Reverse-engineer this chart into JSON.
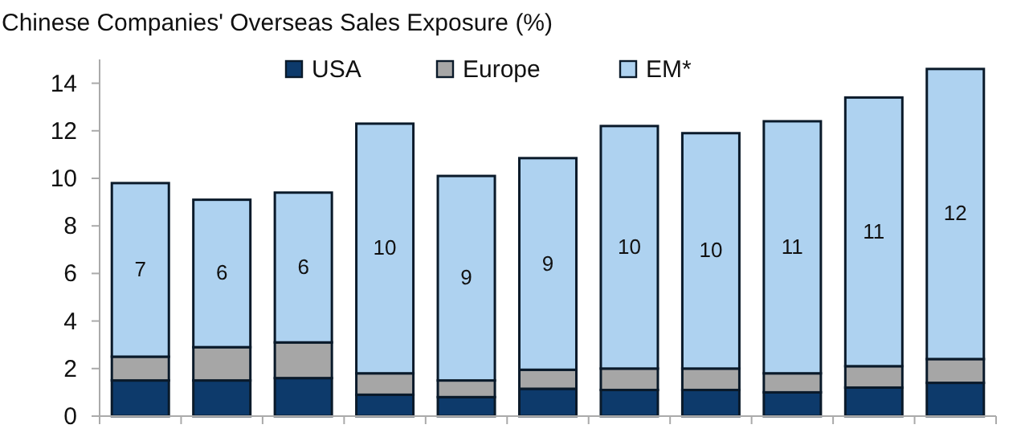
{
  "chart_data": {
    "type": "bar",
    "title": "Chinese Companies' Overseas Sales Exposure (%)",
    "stacked": true,
    "legend": "top",
    "grid": false,
    "categories": [
      null,
      null,
      null,
      null,
      null,
      null,
      null,
      null,
      null,
      null,
      null
    ],
    "ylim": [
      0,
      15
    ],
    "yticks": [
      0,
      2,
      4,
      6,
      8,
      10,
      12,
      14
    ],
    "series": [
      {
        "name": "USA",
        "color": "#0d3a6b",
        "values": [
          1.5,
          1.5,
          1.6,
          0.9,
          0.8,
          1.15,
          1.1,
          1.1,
          1.0,
          1.2,
          1.4
        ]
      },
      {
        "name": "Europe",
        "color": "#a6a6a6",
        "values": [
          1.0,
          1.4,
          1.5,
          0.9,
          0.7,
          0.8,
          0.9,
          0.9,
          0.8,
          0.9,
          1.0
        ]
      },
      {
        "name": "EM*",
        "color": "#aed2f0",
        "values": [
          7.3,
          6.2,
          6.3,
          10.5,
          8.6,
          8.9,
          10.2,
          9.9,
          10.6,
          11.3,
          12.2
        ],
        "value_labels": [
          "7",
          "6",
          "6",
          "10",
          "9",
          "9",
          "10",
          "10",
          "11",
          "11",
          "12"
        ]
      }
    ]
  }
}
